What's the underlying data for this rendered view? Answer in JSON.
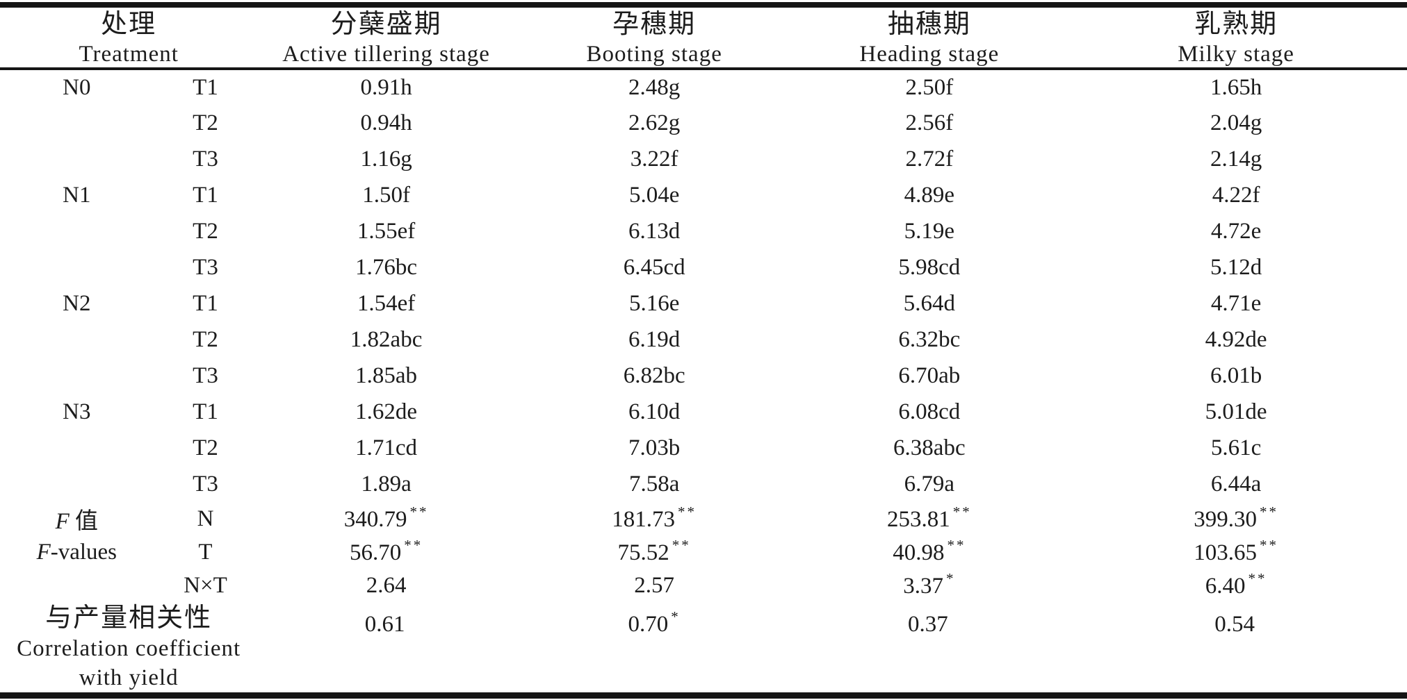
{
  "page": {
    "background": "#ffffff",
    "text_color": "#1c1c1c",
    "rule_color": "#151515"
  },
  "table": {
    "header": {
      "treatment_cn": "处理",
      "treatment_en": "Treatment",
      "stages": [
        {
          "cn": "分蘖盛期",
          "en": "Active tillering stage"
        },
        {
          "cn": "孕穗期",
          "en": "Booting stage"
        },
        {
          "cn": "抽穗期",
          "en": "Heading stage"
        },
        {
          "cn": "乳熟期",
          "en": "Milky stage"
        }
      ]
    },
    "rows": [
      {
        "gi": "",
        "g": "N0",
        "t": "T1",
        "cells": [
          {
            "v": "0.91h",
            "s": ""
          },
          {
            "v": "2.48g",
            "s": ""
          },
          {
            "v": "2.50f",
            "s": ""
          },
          {
            "v": "1.65h",
            "s": ""
          }
        ]
      },
      {
        "gi": "",
        "g": "",
        "t": "T2",
        "cells": [
          {
            "v": "0.94h",
            "s": ""
          },
          {
            "v": "2.62g",
            "s": ""
          },
          {
            "v": "2.56f",
            "s": ""
          },
          {
            "v": "2.04g",
            "s": ""
          }
        ]
      },
      {
        "gi": "",
        "g": "",
        "t": "T3",
        "cells": [
          {
            "v": "1.16g",
            "s": ""
          },
          {
            "v": "3.22f",
            "s": ""
          },
          {
            "v": "2.72f",
            "s": ""
          },
          {
            "v": "2.14g",
            "s": ""
          }
        ]
      },
      {
        "gi": "",
        "g": "N1",
        "t": "T1",
        "cells": [
          {
            "v": "1.50f",
            "s": ""
          },
          {
            "v": "5.04e",
            "s": ""
          },
          {
            "v": "4.89e",
            "s": ""
          },
          {
            "v": "4.22f",
            "s": ""
          }
        ]
      },
      {
        "gi": "",
        "g": "",
        "t": "T2",
        "cells": [
          {
            "v": "1.55ef",
            "s": ""
          },
          {
            "v": "6.13d",
            "s": ""
          },
          {
            "v": "5.19e",
            "s": ""
          },
          {
            "v": "4.72e",
            "s": ""
          }
        ]
      },
      {
        "gi": "",
        "g": "",
        "t": "T3",
        "cells": [
          {
            "v": "1.76bc",
            "s": ""
          },
          {
            "v": "6.45cd",
            "s": ""
          },
          {
            "v": "5.98cd",
            "s": ""
          },
          {
            "v": "5.12d",
            "s": ""
          }
        ]
      },
      {
        "gi": "",
        "g": "N2",
        "t": "T1",
        "cells": [
          {
            "v": "1.54ef",
            "s": ""
          },
          {
            "v": "5.16e",
            "s": ""
          },
          {
            "v": "5.64d",
            "s": ""
          },
          {
            "v": "4.71e",
            "s": ""
          }
        ]
      },
      {
        "gi": "",
        "g": "",
        "t": "T2",
        "cells": [
          {
            "v": "1.82abc",
            "s": ""
          },
          {
            "v": "6.19d",
            "s": ""
          },
          {
            "v": "6.32bc",
            "s": ""
          },
          {
            "v": "4.92de",
            "s": ""
          }
        ]
      },
      {
        "gi": "",
        "g": "",
        "t": "T3",
        "cells": [
          {
            "v": "1.85ab",
            "s": ""
          },
          {
            "v": "6.82bc",
            "s": ""
          },
          {
            "v": "6.70ab",
            "s": ""
          },
          {
            "v": "6.01b",
            "s": ""
          }
        ]
      },
      {
        "gi": "",
        "g": "N3",
        "t": "T1",
        "cells": [
          {
            "v": "1.62de",
            "s": ""
          },
          {
            "v": "6.10d",
            "s": ""
          },
          {
            "v": "6.08cd",
            "s": ""
          },
          {
            "v": "5.01de",
            "s": ""
          }
        ]
      },
      {
        "gi": "",
        "g": "",
        "t": "T2",
        "cells": [
          {
            "v": "1.71cd",
            "s": ""
          },
          {
            "v": "7.03b",
            "s": ""
          },
          {
            "v": "6.38abc",
            "s": ""
          },
          {
            "v": "5.61c",
            "s": ""
          }
        ]
      },
      {
        "gi": "",
        "g": "",
        "t": "T3",
        "cells": [
          {
            "v": "1.89a",
            "s": ""
          },
          {
            "v": "7.58a",
            "s": ""
          },
          {
            "v": "6.79a",
            "s": ""
          },
          {
            "v": "6.44a",
            "s": ""
          }
        ]
      },
      {
        "gi": "F",
        "g": " 值",
        "t": "N",
        "cells": [
          {
            "v": "340.79",
            "s": "**"
          },
          {
            "v": "181.73",
            "s": "**"
          },
          {
            "v": "253.81",
            "s": "**"
          },
          {
            "v": "399.30",
            "s": "**"
          }
        ]
      },
      {
        "gi": "F",
        "g": "-values",
        "t": "T",
        "cells": [
          {
            "v": "56.70",
            "s": "**"
          },
          {
            "v": "75.52",
            "s": "**"
          },
          {
            "v": "40.98",
            "s": "**"
          },
          {
            "v": "103.65",
            "s": "**"
          }
        ]
      },
      {
        "gi": "",
        "g": "",
        "t": "N×T",
        "cells": [
          {
            "v": "2.64",
            "s": ""
          },
          {
            "v": "2.57",
            "s": ""
          },
          {
            "v": "3.37",
            "s": "*"
          },
          {
            "v": "6.40",
            "s": "**"
          }
        ]
      }
    ],
    "correlation": {
      "label_cn": "与产量相关性",
      "label_en1": "Correlation coefficient",
      "label_en2": "with yield",
      "cells": [
        {
          "v": "0.61",
          "s": ""
        },
        {
          "v": "0.70",
          "s": "*"
        },
        {
          "v": "0.37",
          "s": ""
        },
        {
          "v": "0.54",
          "s": ""
        }
      ]
    }
  }
}
